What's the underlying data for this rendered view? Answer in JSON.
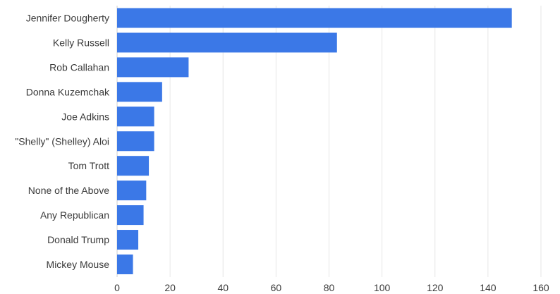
{
  "chart_data": {
    "type": "bar",
    "orientation": "horizontal",
    "categories": [
      "Jennifer Dougherty",
      "Kelly Russell",
      "Rob Callahan",
      "Donna Kuzemchak",
      "Joe Adkins",
      "\"Shelly\" (Shelley) Aloi",
      "Tom Trott",
      "None of the Above",
      "Any Republican",
      "Donald Trump",
      "Mickey Mouse"
    ],
    "values": [
      149,
      83,
      27,
      17,
      14,
      14,
      12,
      11,
      10,
      8,
      6
    ],
    "xlim": [
      0,
      160
    ],
    "xticks": [
      0,
      20,
      40,
      60,
      80,
      100,
      120,
      140,
      160
    ],
    "title": "",
    "xlabel": "",
    "ylabel": "",
    "grid": true,
    "legend": "none",
    "bar_color": "#3b78e7"
  }
}
